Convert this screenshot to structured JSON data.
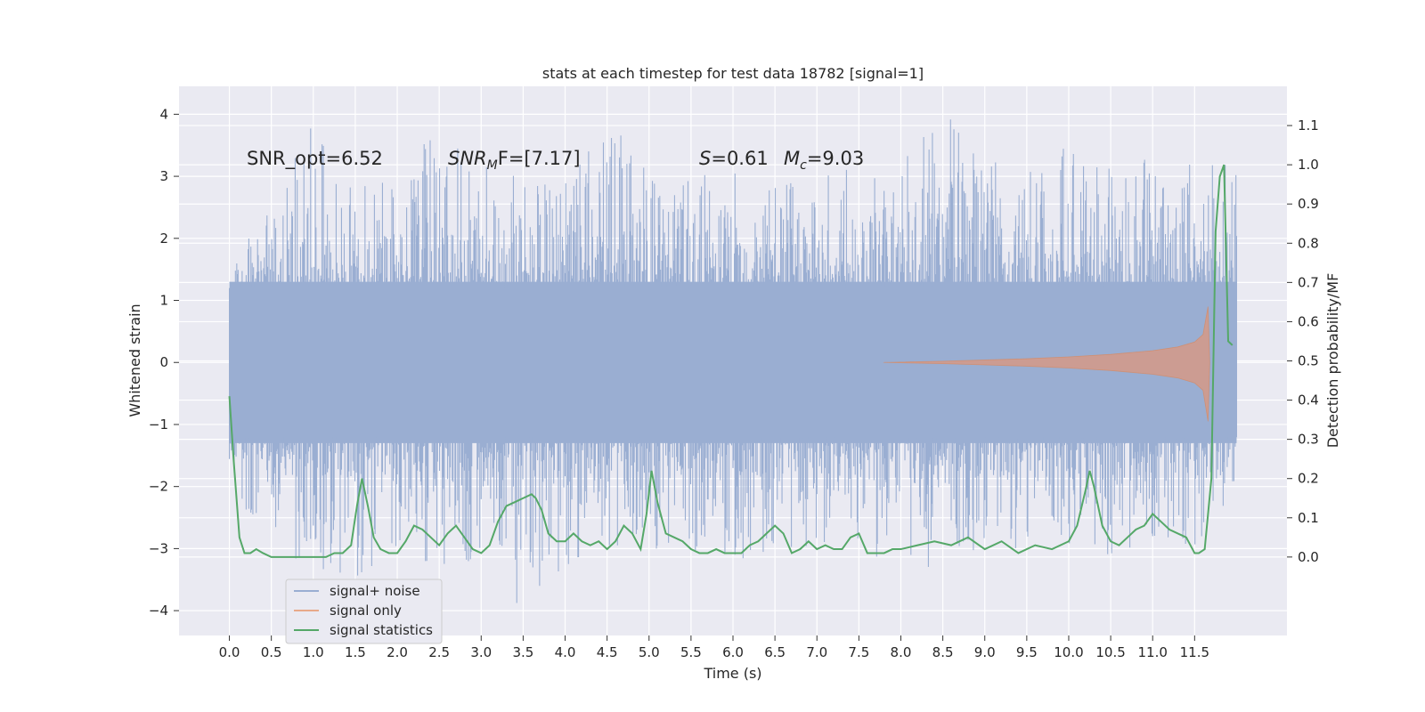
{
  "chart_data": {
    "type": "line",
    "title": "stats at each timestep for test data 18782 [signal=1]",
    "xlabel": "Time (s)",
    "ylabel_left": "Whitened strain",
    "ylabel_right": "Detection probability/MF",
    "xlim": [
      -0.6,
      12.6
    ],
    "ylim_left": [
      -4.4,
      4.45
    ],
    "ylim_right": [
      -0.2,
      1.2
    ],
    "x_ticks": [
      0.0,
      0.5,
      1.0,
      1.5,
      2.0,
      2.5,
      3.0,
      3.5,
      4.0,
      4.5,
      5.0,
      5.5,
      6.0,
      6.5,
      7.0,
      7.5,
      8.0,
      8.5,
      9.0,
      9.5,
      10.0,
      10.5,
      11.0,
      11.5
    ],
    "x_tick_labels": [
      "0.0",
      "0.5",
      "1.0",
      "1.5",
      "2.0",
      "2.5",
      "3.0",
      "3.5",
      "4.0",
      "4.5",
      "5.0",
      "5.5",
      "6.0",
      "6.5",
      "7.0",
      "7.5",
      "8.0",
      "8.5",
      "9.0",
      "9.5",
      "10.0",
      "10.5",
      "11.0",
      "11.5"
    ],
    "y_left_ticks": [
      -4,
      -3,
      -2,
      -1,
      0,
      1,
      2,
      3,
      4
    ],
    "y_left_tick_labels": [
      "−4",
      "−3",
      "−2",
      "−1",
      "0",
      "1",
      "2",
      "3",
      "4"
    ],
    "y_right_ticks": [
      0.0,
      0.1,
      0.2,
      0.3,
      0.4,
      0.5,
      0.6,
      0.7,
      0.8,
      0.9,
      1.0,
      1.1
    ],
    "y_right_tick_labels": [
      "0.0",
      "0.1",
      "0.2",
      "0.3",
      "0.4",
      "0.5",
      "0.6",
      "0.7",
      "0.8",
      "0.9",
      "1.0",
      "1.1"
    ],
    "grid": true,
    "legend_position": "lower-left",
    "annotations": {
      "snr_opt": "SNR_opt=6.52",
      "snr_mf_label": "SNR",
      "snr_mf_sub": "M",
      "snr_mf_rest": "F=[7.17]",
      "s_label": "S",
      "s_value": "=0.61",
      "mc_label": "M",
      "mc_sub": "c",
      "mc_value": "=9.03"
    },
    "series": [
      {
        "name": "signal+ noise",
        "color": "#9aaed2",
        "axis": "left",
        "description_range": [
          0.0,
          12.0
        ],
        "envelope": {
          "x": [
            0.0,
            0.5,
            1.0,
            1.5,
            2.0,
            2.5,
            3.0,
            3.5,
            4.0,
            4.5,
            5.0,
            5.5,
            6.0,
            6.5,
            7.0,
            7.5,
            8.0,
            8.5,
            9.0,
            9.5,
            10.0,
            10.5,
            11.0,
            11.5,
            12.0
          ],
          "upper": [
            1.5,
            2.6,
            3.9,
            2.8,
            3.0,
            3.9,
            3.2,
            3.0,
            2.9,
            3.9,
            3.3,
            3.0,
            3.1,
            3.0,
            3.1,
            3.3,
            3.5,
            4.1,
            3.2,
            3.3,
            3.5,
            3.2,
            3.4,
            3.3,
            3.2
          ],
          "lower": [
            -2.0,
            -3.0,
            -3.4,
            -3.6,
            -3.0,
            -3.3,
            -3.2,
            -4.0,
            -3.3,
            -3.0,
            -3.0,
            -3.0,
            -3.6,
            -3.0,
            -3.0,
            -3.0,
            -4.0,
            -3.1,
            -3.0,
            -3.0,
            -3.0,
            -3.5,
            -3.0,
            -3.0,
            -2.2
          ]
        }
      },
      {
        "name": "signal only",
        "color": "#dd8452",
        "axis": "left",
        "envelope": {
          "x": [
            7.8,
            8.5,
            9.0,
            9.5,
            10.0,
            10.5,
            11.0,
            11.3,
            11.5,
            11.6,
            11.66,
            11.68
          ],
          "upper": [
            0.0,
            0.02,
            0.04,
            0.06,
            0.09,
            0.13,
            0.19,
            0.25,
            0.33,
            0.45,
            0.9,
            0.0
          ],
          "lower": [
            0.0,
            -0.02,
            -0.04,
            -0.06,
            -0.09,
            -0.13,
            -0.19,
            -0.25,
            -0.33,
            -0.45,
            -0.95,
            0.0
          ]
        }
      },
      {
        "name": "signal statistics",
        "color": "#55a868",
        "axis": "right",
        "x": [
          0.0,
          0.05,
          0.12,
          0.18,
          0.25,
          0.32,
          0.4,
          0.5,
          0.65,
          0.8,
          1.0,
          1.15,
          1.25,
          1.35,
          1.45,
          1.52,
          1.58,
          1.65,
          1.72,
          1.8,
          1.9,
          2.0,
          2.1,
          2.2,
          2.3,
          2.4,
          2.5,
          2.6,
          2.7,
          2.8,
          2.9,
          3.0,
          3.1,
          3.2,
          3.3,
          3.4,
          3.5,
          3.6,
          3.65,
          3.72,
          3.8,
          3.9,
          4.0,
          4.1,
          4.2,
          4.3,
          4.4,
          4.5,
          4.6,
          4.7,
          4.8,
          4.9,
          4.97,
          5.03,
          5.1,
          5.2,
          5.3,
          5.4,
          5.5,
          5.6,
          5.7,
          5.8,
          5.9,
          6.0,
          6.1,
          6.2,
          6.3,
          6.4,
          6.5,
          6.6,
          6.7,
          6.8,
          6.9,
          7.0,
          7.1,
          7.2,
          7.3,
          7.4,
          7.5,
          7.6,
          7.7,
          7.8,
          7.9,
          8.0,
          8.2,
          8.4,
          8.6,
          8.8,
          9.0,
          9.2,
          9.4,
          9.6,
          9.8,
          10.0,
          10.1,
          10.2,
          10.25,
          10.3,
          10.4,
          10.5,
          10.6,
          10.7,
          10.8,
          10.9,
          11.0,
          11.1,
          11.2,
          11.3,
          11.4,
          11.5,
          11.55,
          11.62,
          11.7,
          11.75,
          11.8,
          11.85,
          11.9,
          11.95
        ],
        "y": [
          0.41,
          0.25,
          0.05,
          0.01,
          0.01,
          0.02,
          0.01,
          0.0,
          0.0,
          0.0,
          0.0,
          0.0,
          0.01,
          0.01,
          0.03,
          0.13,
          0.2,
          0.13,
          0.05,
          0.02,
          0.01,
          0.01,
          0.04,
          0.08,
          0.07,
          0.05,
          0.03,
          0.06,
          0.08,
          0.05,
          0.02,
          0.01,
          0.03,
          0.09,
          0.13,
          0.14,
          0.15,
          0.16,
          0.15,
          0.12,
          0.06,
          0.04,
          0.04,
          0.06,
          0.04,
          0.03,
          0.04,
          0.02,
          0.04,
          0.08,
          0.06,
          0.02,
          0.11,
          0.22,
          0.14,
          0.06,
          0.05,
          0.04,
          0.02,
          0.01,
          0.01,
          0.02,
          0.01,
          0.01,
          0.01,
          0.03,
          0.04,
          0.06,
          0.08,
          0.06,
          0.01,
          0.02,
          0.04,
          0.02,
          0.03,
          0.02,
          0.02,
          0.05,
          0.06,
          0.01,
          0.01,
          0.01,
          0.02,
          0.02,
          0.03,
          0.04,
          0.03,
          0.05,
          0.02,
          0.04,
          0.01,
          0.03,
          0.02,
          0.04,
          0.08,
          0.17,
          0.22,
          0.18,
          0.08,
          0.04,
          0.03,
          0.05,
          0.07,
          0.08,
          0.11,
          0.09,
          0.07,
          0.06,
          0.05,
          0.01,
          0.01,
          0.02,
          0.2,
          0.83,
          0.97,
          1.0,
          0.55,
          0.54
        ]
      }
    ]
  }
}
